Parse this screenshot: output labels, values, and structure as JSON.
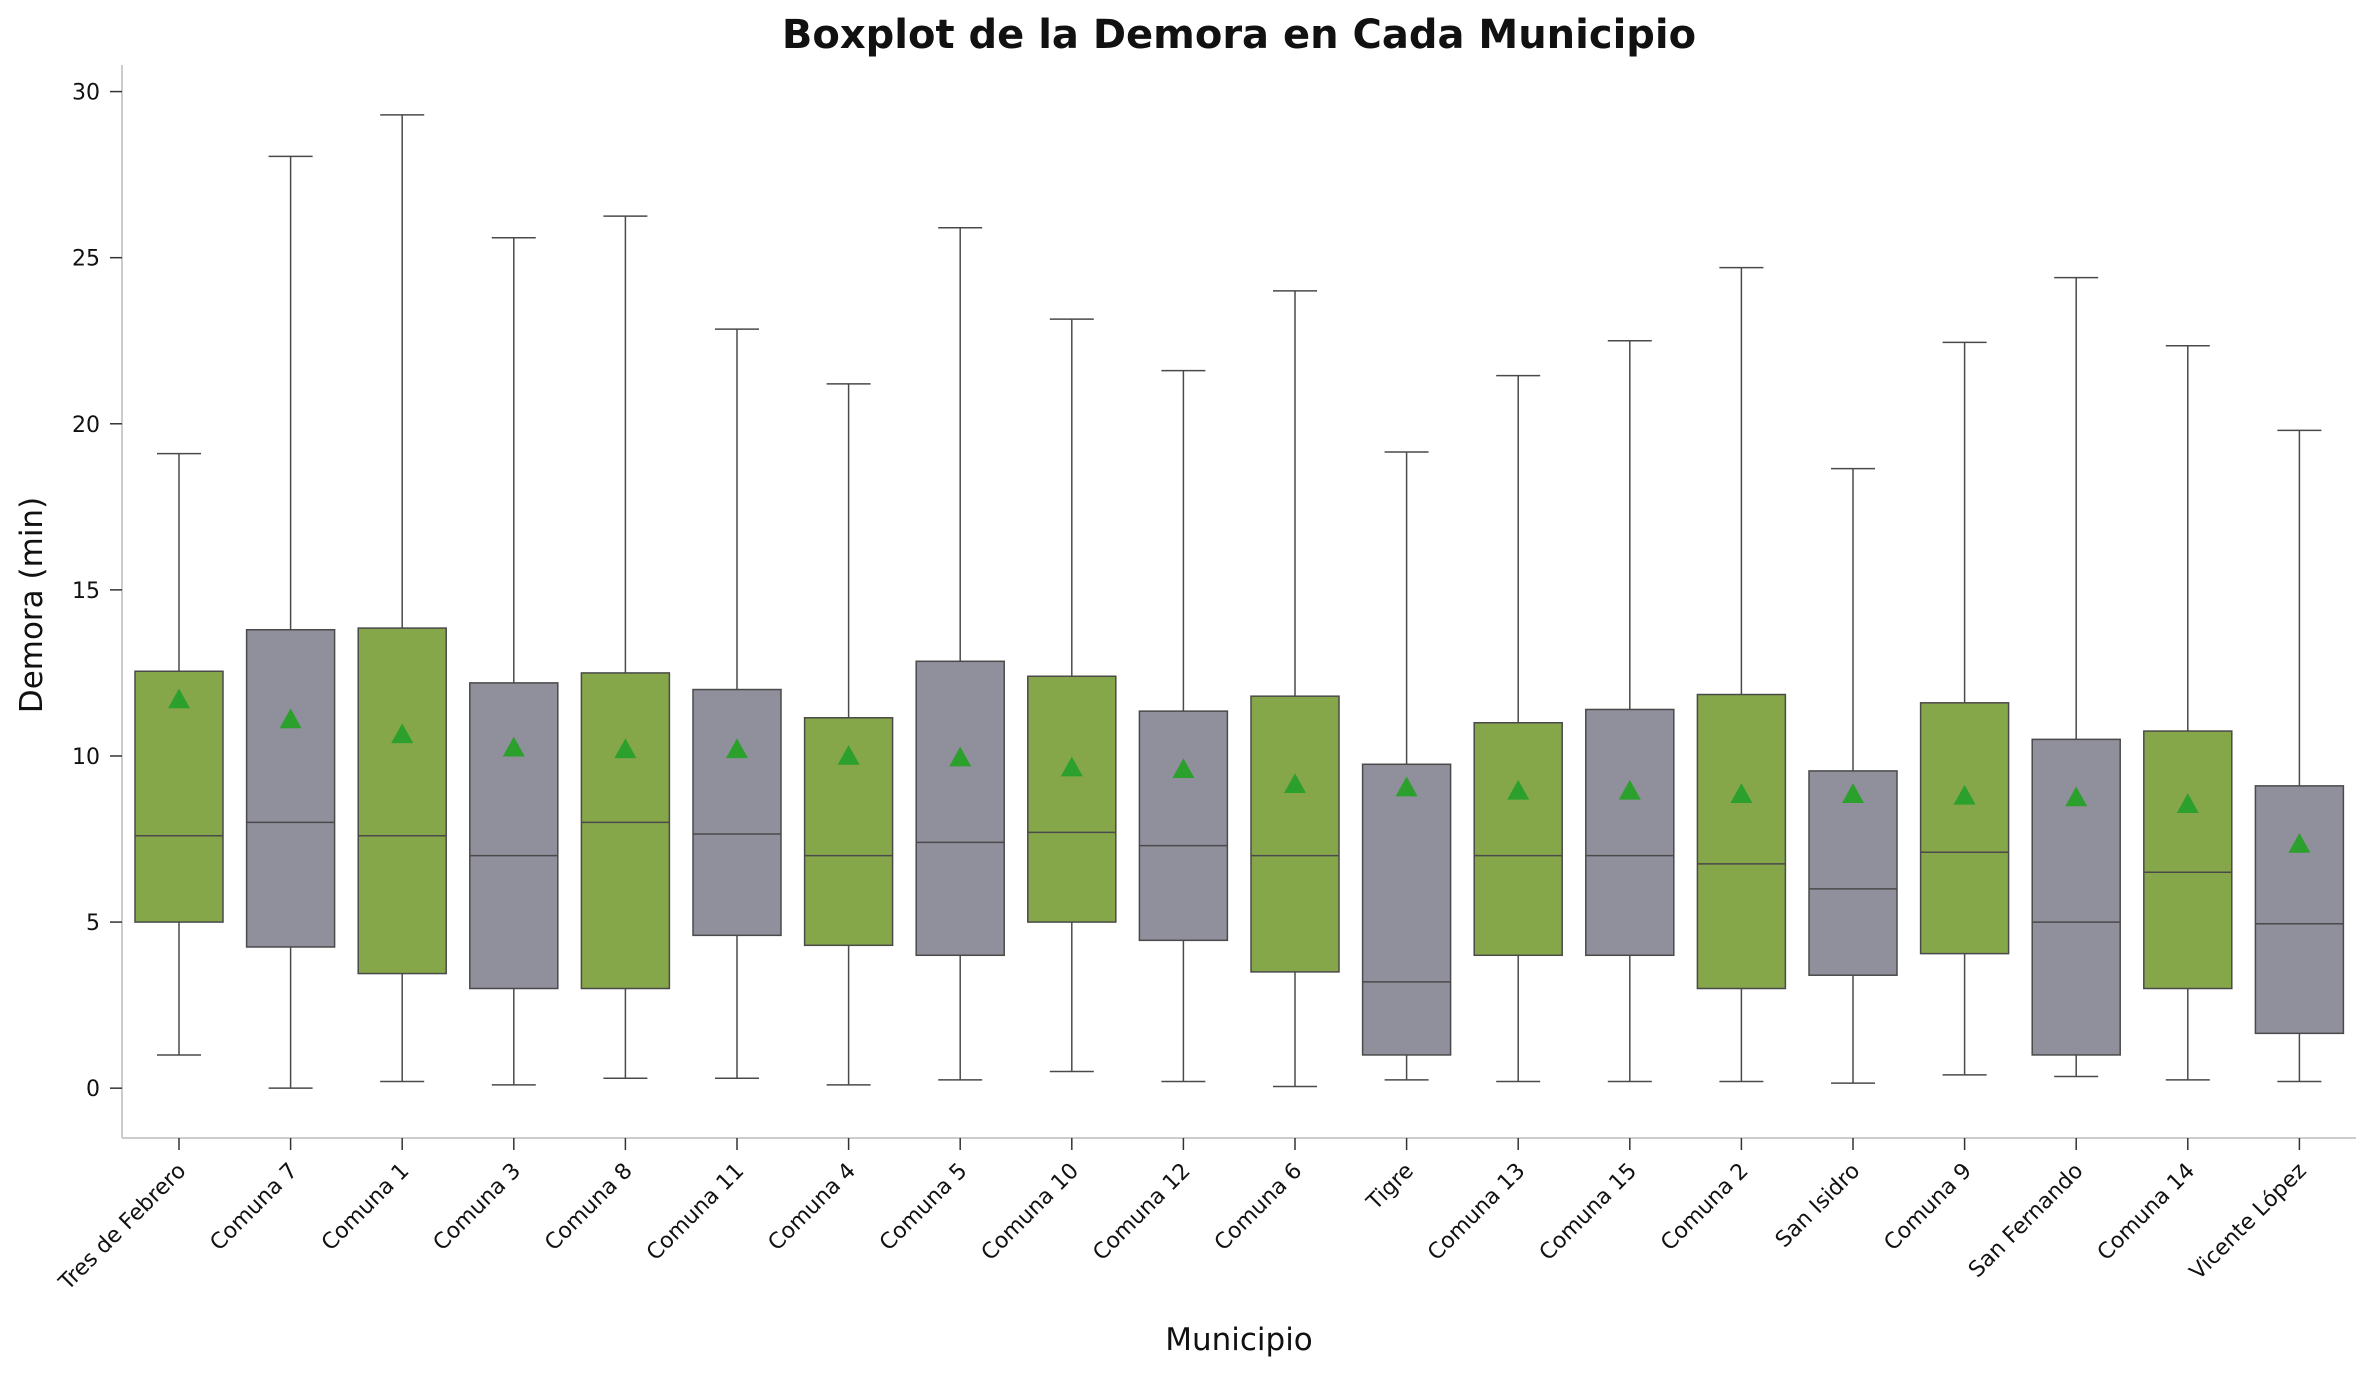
{
  "chart_data": {
    "type": "boxplot",
    "title": "Boxplot de la Demora en Cada Municipio",
    "xlabel": "Municipio",
    "ylabel": "Demora (min)",
    "ylim": [
      -1.5,
      30.8
    ],
    "yticks": [
      0,
      5,
      10,
      15,
      20,
      25,
      30
    ],
    "grid": false,
    "colors": {
      "green": "#86A64A",
      "gray": "#908F9C",
      "mean_marker": "#2CA02C",
      "line": "#4A4A4A",
      "axis": "#CCCCCC"
    },
    "mean_marker_shape": "triangle",
    "categories": [
      {
        "name": "Tres de Febrero",
        "color": "green",
        "whisker_low": 1.0,
        "q1": 5.0,
        "median": 7.6,
        "q3": 12.55,
        "whisker_high": 19.1,
        "mean": 11.7
      },
      {
        "name": "Comuna 7",
        "color": "gray",
        "whisker_low": 0.0,
        "q1": 4.25,
        "median": 8.0,
        "q3": 13.8,
        "whisker_high": 28.05,
        "mean": 11.1
      },
      {
        "name": "Comuna 1",
        "color": "green",
        "whisker_low": 0.2,
        "q1": 3.45,
        "median": 7.6,
        "q3": 13.85,
        "whisker_high": 29.3,
        "mean": 10.65
      },
      {
        "name": "Comuna 3",
        "color": "gray",
        "whisker_low": 0.1,
        "q1": 3.0,
        "median": 7.0,
        "q3": 12.2,
        "whisker_high": 25.6,
        "mean": 10.25
      },
      {
        "name": "Comuna 8",
        "color": "green",
        "whisker_low": 0.3,
        "q1": 3.0,
        "median": 8.0,
        "q3": 12.5,
        "whisker_high": 26.25,
        "mean": 10.2
      },
      {
        "name": "Comuna 11",
        "color": "gray",
        "whisker_low": 0.3,
        "q1": 4.6,
        "median": 7.65,
        "q3": 12.0,
        "whisker_high": 22.85,
        "mean": 10.2
      },
      {
        "name": "Comuna 4",
        "color": "green",
        "whisker_low": 0.1,
        "q1": 4.3,
        "median": 7.0,
        "q3": 11.15,
        "whisker_high": 21.2,
        "mean": 10.0
      },
      {
        "name": "Comuna 5",
        "color": "gray",
        "whisker_low": 0.25,
        "q1": 4.0,
        "median": 7.4,
        "q3": 12.85,
        "whisker_high": 25.9,
        "mean": 9.95
      },
      {
        "name": "Comuna 10",
        "color": "green",
        "whisker_low": 0.5,
        "q1": 5.0,
        "median": 7.7,
        "q3": 12.4,
        "whisker_high": 23.15,
        "mean": 9.65
      },
      {
        "name": "Comuna 12",
        "color": "gray",
        "whisker_low": 0.2,
        "q1": 4.45,
        "median": 7.3,
        "q3": 11.35,
        "whisker_high": 21.6,
        "mean": 9.6
      },
      {
        "name": "Comuna 6",
        "color": "green",
        "whisker_low": 0.05,
        "q1": 3.5,
        "median": 7.0,
        "q3": 11.8,
        "whisker_high": 24.0,
        "mean": 9.15
      },
      {
        "name": "Tigre",
        "color": "gray",
        "whisker_low": 0.25,
        "q1": 1.0,
        "median": 3.2,
        "q3": 9.75,
        "whisker_high": 19.15,
        "mean": 9.05
      },
      {
        "name": "Comuna 13",
        "color": "green",
        "whisker_low": 0.2,
        "q1": 4.0,
        "median": 7.0,
        "q3": 11.0,
        "whisker_high": 21.45,
        "mean": 8.95
      },
      {
        "name": "Comuna 15",
        "color": "gray",
        "whisker_low": 0.2,
        "q1": 4.0,
        "median": 7.0,
        "q3": 11.4,
        "whisker_high": 22.5,
        "mean": 8.95
      },
      {
        "name": "Comuna 2",
        "color": "green",
        "whisker_low": 0.2,
        "q1": 3.0,
        "median": 6.75,
        "q3": 11.85,
        "whisker_high": 24.7,
        "mean": 8.85
      },
      {
        "name": "San Isidro",
        "color": "gray",
        "whisker_low": 0.15,
        "q1": 3.4,
        "median": 6.0,
        "q3": 9.55,
        "whisker_high": 18.65,
        "mean": 8.85
      },
      {
        "name": "Comuna 9",
        "color": "green",
        "whisker_low": 0.4,
        "q1": 4.05,
        "median": 7.1,
        "q3": 11.6,
        "whisker_high": 22.45,
        "mean": 8.8
      },
      {
        "name": "San Fernando",
        "color": "gray",
        "whisker_low": 0.35,
        "q1": 1.0,
        "median": 5.0,
        "q3": 10.5,
        "whisker_high": 24.4,
        "mean": 8.75
      },
      {
        "name": "Comuna 14",
        "color": "green",
        "whisker_low": 0.25,
        "q1": 3.0,
        "median": 6.5,
        "q3": 10.75,
        "whisker_high": 22.35,
        "mean": 8.55
      },
      {
        "name": "Vicente López",
        "color": "gray",
        "whisker_low": 0.2,
        "q1": 1.65,
        "median": 4.95,
        "q3": 9.1,
        "whisker_high": 19.8,
        "mean": 7.35
      }
    ]
  }
}
